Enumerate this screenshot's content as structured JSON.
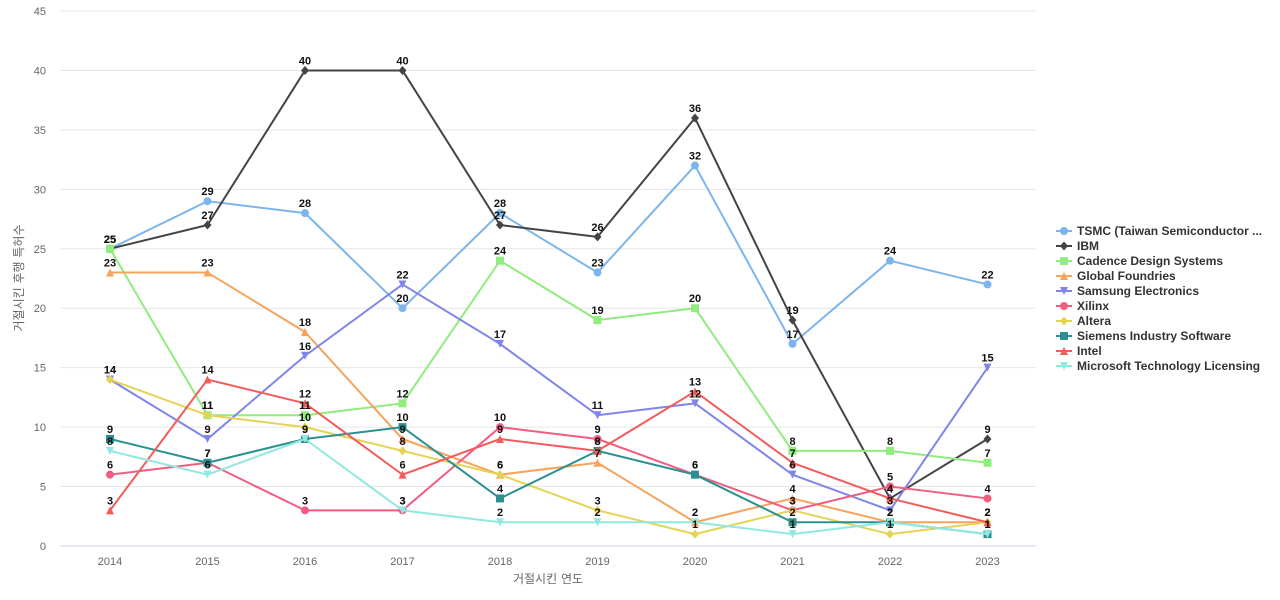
{
  "chart_data": {
    "type": "line",
    "title": "",
    "xlabel": "거절시킨 연도",
    "ylabel": "거절시킨 후행 특허수",
    "ylim": [
      0,
      45
    ],
    "yticks": [
      0,
      5,
      10,
      15,
      20,
      25,
      30,
      35,
      40,
      45
    ],
    "grid": true,
    "legend_position": "right",
    "categories": [
      "2014",
      "2015",
      "2016",
      "2017",
      "2018",
      "2019",
      "2020",
      "2021",
      "2022",
      "2023"
    ],
    "series": [
      {
        "name": "TSMC (Taiwan Semiconductor ...",
        "color": "#7cb5ec",
        "marker": "circle",
        "values": [
          25,
          29,
          28,
          20,
          28,
          23,
          32,
          17,
          24,
          22
        ]
      },
      {
        "name": "IBM",
        "color": "#434348",
        "marker": "diamond",
        "values": [
          25,
          27,
          40,
          40,
          27,
          26,
          36,
          19,
          4,
          9
        ]
      },
      {
        "name": "Cadence Design Systems",
        "color": "#90ed7d",
        "marker": "square",
        "values": [
          25,
          11,
          11,
          12,
          24,
          19,
          20,
          8,
          8,
          7
        ]
      },
      {
        "name": "Global Foundries",
        "color": "#f7a35c",
        "marker": "triangle",
        "values": [
          23,
          23,
          18,
          9,
          6,
          7,
          2,
          4,
          2,
          2
        ]
      },
      {
        "name": "Samsung Electronics",
        "color": "#8085e9",
        "marker": "triangle-down",
        "values": [
          14,
          9,
          16,
          22,
          17,
          11,
          12,
          6,
          3,
          15
        ]
      },
      {
        "name": "Xilinx",
        "color": "#f15c80",
        "marker": "circle",
        "values": [
          6,
          7,
          3,
          3,
          10,
          9,
          6,
          3,
          5,
          4
        ]
      },
      {
        "name": "Altera",
        "color": "#e4d354",
        "marker": "diamond",
        "values": [
          14,
          11,
          10,
          8,
          6,
          3,
          1,
          3,
          1,
          2
        ]
      },
      {
        "name": "Siemens Industry Software",
        "color": "#2b908f",
        "marker": "square",
        "values": [
          9,
          7,
          9,
          10,
          4,
          8,
          6,
          2,
          2,
          1
        ]
      },
      {
        "name": "Intel",
        "color": "#f45b5b",
        "marker": "triangle",
        "values": [
          3,
          14,
          12,
          6,
          9,
          8,
          13,
          7,
          4,
          2
        ]
      },
      {
        "name": "Microsoft Technology Licensing",
        "color": "#91e8e1",
        "marker": "triangle-down",
        "values": [
          8,
          6,
          9,
          3,
          2,
          2,
          2,
          1,
          2,
          1
        ]
      }
    ]
  }
}
